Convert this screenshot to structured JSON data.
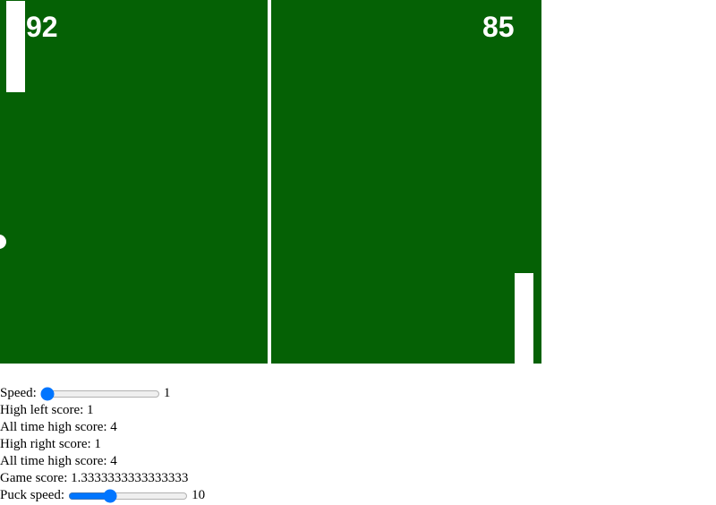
{
  "game": {
    "left_score": "92",
    "right_score": "85",
    "colors": {
      "court": "#056105",
      "paddle": "#ffffff",
      "ball": "#ffffff"
    }
  },
  "controls": {
    "speed_label": "Speed:",
    "speed_value": "1",
    "speed_slider": {
      "min": 1,
      "max": 20,
      "value": 1
    },
    "high_left_score": "High left score: 1",
    "all_time_high_1": "All time high score: 4",
    "high_right_score": "High right score: 1",
    "all_time_high_2": "All time high score: 4",
    "game_score": "Game score: 1.3333333333333333",
    "puck_speed_label": "Puck speed:",
    "puck_speed_value": "10",
    "puck_slider": {
      "min": 0,
      "max": 30,
      "value": 10
    }
  }
}
